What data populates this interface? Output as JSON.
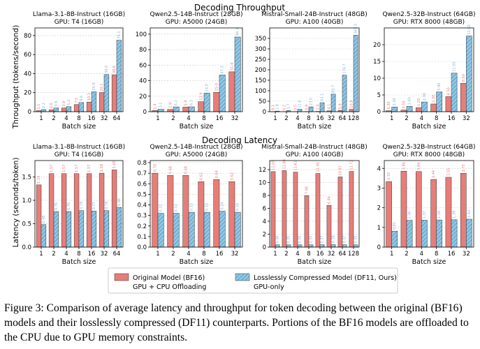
{
  "sections": {
    "throughput_title": "Decoding Throughput",
    "latency_title": "Decoding Latency",
    "throughput_ylabel": "Throughput (tokens/second)",
    "latency_ylabel": "Latency (seconds/token)",
    "xlabel": "Batch size"
  },
  "legend": {
    "items": [
      {
        "label_line1": "Original Model (BF16)",
        "label_line2": "GPU + CPU Offloading",
        "color": "#e87d78",
        "hatch": false
      },
      {
        "label_line1": "Losslessly Compressed Model (DF11, Ours)",
        "label_line2": "GPU-only",
        "color": "#8dc8e8",
        "hatch": true
      }
    ]
  },
  "caption": "Figure 3: Comparison of average latency and throughput for token decoding between the original (BF16) models and their losslessly compressed (DF11) counterparts. Portions of the BF16 models are offloaded to the CPU due to GPU memory constraints.",
  "colors": {
    "bf16": "#e87d78",
    "df11": "#8dc8e8",
    "bf16_label": "#e87d78",
    "df11_label": "#7fb8d8"
  },
  "chart_data": [
    {
      "type": "bar",
      "panel": "throughput-1",
      "title_line1": "Llama-3.1-8B-Instruct (16GB)",
      "title_line2": "GPU: T4 (16GB)",
      "categories": [
        "1",
        "2",
        "4",
        "8",
        "16",
        "32",
        "64"
      ],
      "ylim": [
        0,
        88
      ],
      "yticks": [
        0,
        20,
        40,
        60,
        80
      ],
      "series": [
        {
          "name": "Original Model (BF16)",
          "values": [
            1.1,
            2.0,
            3.9,
            7.5,
            10.1,
            20.1,
            38.8
          ]
        },
        {
          "name": "Losslessly Compressed Model (DF11, Ours)",
          "values": [
            2.2,
            3.9,
            5.3,
            9.6,
            20.9,
            39.0,
            75.1
          ]
        }
      ]
    },
    {
      "type": "bar",
      "panel": "throughput-2",
      "title_line1": "Qwen2.5-14B-Instruct (28GB)",
      "title_line2": "GPU: A5000 (24GB)",
      "categories": [
        "1",
        "2",
        "4",
        "8",
        "16",
        "32"
      ],
      "ylim": [
        0,
        108
      ],
      "yticks": [
        0,
        20,
        40,
        60,
        80,
        100
      ],
      "series": [
        {
          "name": "Original Model (BF16)",
          "values": [
            1.4,
            2.9,
            5.9,
            12.9,
            25.0,
            51.4
          ]
        },
        {
          "name": "Losslessly Compressed Model (DF11, Ours)",
          "values": [
            3.1,
            6.2,
            6.3,
            24.0,
            47.3,
            96.3
          ]
        }
      ]
    },
    {
      "type": "bar",
      "panel": "throughput-3",
      "title_line1": "Mistral-Small-24B-Instruct (48GB)",
      "title_line2": "GPU: A100 (40GB)",
      "categories": [
        "1",
        "2",
        "4",
        "8",
        "16",
        "32",
        "64",
        "128"
      ],
      "ylim": [
        0,
        400
      ],
      "yticks": [
        0,
        50,
        100,
        150,
        200,
        250,
        300,
        350
      ],
      "series": [
        {
          "name": "Original Model (BF16)",
          "values": [
            0.1,
            0.2,
            0.5,
            0.9,
            1.4,
            4.1,
            5.9,
            10.9
          ]
        },
        {
          "name": "Losslessly Compressed Model (DF11, Ours)",
          "values": [
            2.8,
            5.7,
            11.6,
            23.0,
            43.1,
            83.7,
            174.7,
            365.3
          ]
        }
      ]
    },
    {
      "type": "bar",
      "panel": "throughput-4",
      "title_line1": "Qwen2.5-32B-Instruct (64GB)",
      "title_line2": "GPU: RTX 8000 (48GB)",
      "categories": [
        "1",
        "2",
        "4",
        "8",
        "16",
        "32"
      ],
      "ylim": [
        0,
        25
      ],
      "yticks": [
        0,
        5,
        10,
        15,
        20
      ],
      "series": [
        {
          "name": "Original Model (BF16)",
          "values": [
            0.3,
            0.5,
            1.2,
            2.3,
            4.5,
            8.5
          ]
        },
        {
          "name": "Losslessly Compressed Model (DF11, Ours)",
          "values": [
            1.4,
            1.6,
            2.9,
            5.9,
            11.5,
            22.6
          ]
        }
      ]
    },
    {
      "type": "bar",
      "panel": "latency-1",
      "categories": [
        "1",
        "2",
        "4",
        "8",
        "16",
        "32",
        "64"
      ],
      "ylim": [
        0,
        1.85
      ],
      "yticks": [
        0,
        0.5,
        1.0,
        1.5
      ],
      "series": [
        {
          "name": "Original Model (BF16)",
          "values": [
            1.33,
            1.57,
            1.57,
            1.57,
            1.57,
            1.58,
            1.65
          ]
        },
        {
          "name": "Losslessly Compressed Model (DF11, Ours)",
          "values": [
            0.48,
            0.76,
            0.76,
            0.78,
            0.77,
            0.78,
            0.85
          ]
        }
      ]
    },
    {
      "type": "bar",
      "panel": "latency-2",
      "categories": [
        "1",
        "2",
        "4",
        "8",
        "16",
        "32"
      ],
      "ylim": [
        0,
        0.82
      ],
      "yticks": [
        0,
        0.1,
        0.2,
        0.3,
        0.4,
        0.5,
        0.6,
        0.7,
        0.8
      ],
      "series": [
        {
          "name": "Original Model (BF16)",
          "values": [
            0.7,
            0.68,
            0.68,
            0.62,
            0.64,
            0.62
          ]
        },
        {
          "name": "Losslessly Compressed Model (DF11, Ours)",
          "values": [
            0.32,
            0.32,
            0.33,
            0.33,
            0.34,
            0.33
          ]
        }
      ]
    },
    {
      "type": "bar",
      "panel": "latency-3",
      "categories": [
        "1",
        "2",
        "4",
        "8",
        "16",
        "32",
        "64",
        "128"
      ],
      "ylim": [
        0,
        13.4
      ],
      "yticks": [
        0,
        2,
        4,
        6,
        8,
        10,
        12
      ],
      "series": [
        {
          "name": "Original Model (BF16)",
          "values": [
            11.69,
            11.84,
            11.61,
            7.98,
            11.4,
            6.46,
            10.87,
            11.72
          ]
        },
        {
          "name": "Losslessly Compressed Model (DF11, Ours)",
          "values": [
            0.36,
            0.35,
            0.35,
            0.35,
            0.37,
            0.38,
            0.37,
            0.35
          ]
        }
      ]
    },
    {
      "type": "bar",
      "panel": "latency-4",
      "categories": [
        "1",
        "2",
        "4",
        "8",
        "16",
        "32"
      ],
      "ylim": [
        0,
        4.4
      ],
      "yticks": [
        0,
        1,
        2,
        3,
        4
      ],
      "series": [
        {
          "name": "Original Model (BF16)",
          "values": [
            3.33,
            3.86,
            3.84,
            3.44,
            3.55,
            3.75
          ]
        },
        {
          "name": "Losslessly Compressed Model (DF11, Ours)",
          "values": [
            0.81,
            1.36,
            1.37,
            1.38,
            1.39,
            1.42
          ]
        }
      ]
    }
  ]
}
